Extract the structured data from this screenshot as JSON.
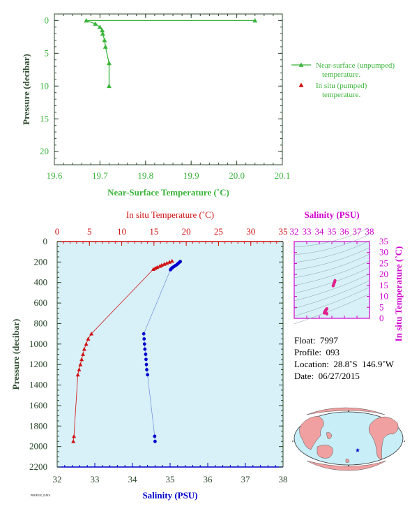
{
  "colors": {
    "green": "#3cb43c",
    "red": "#d01010",
    "blue": "#0000cc",
    "magenta": "#d000d0",
    "axis_dark": "#2e4a2e",
    "panel_bg": "#d8f0f8",
    "map_ocean": "#c8eef8",
    "map_land": "#f0a0a0"
  },
  "chart_data": [
    {
      "type": "line",
      "xlabel": "Near-Surface Temperature (˚C)",
      "ylabel": "Pressure (decibar)",
      "xlim": [
        19.6,
        20.1
      ],
      "ylim": [
        22,
        -1
      ],
      "xticks": [
        "19.6",
        "19.7",
        "19.8",
        "19.9",
        "20.0",
        "20.1"
      ],
      "yticks": [
        "0",
        "5",
        "10",
        "15",
        "20"
      ],
      "legend": [
        {
          "label_line1": "Near-surface (unpumped)",
          "label_line2": "temperature."
        },
        {
          "label_line1": "In situ (pumped)",
          "label_line2": "temperature."
        }
      ],
      "legend_position": "right",
      "series": [
        {
          "name": "Near-surface (unpumped) temperature.",
          "color": "#3cb43c",
          "points": [
            [
              20.04,
              0.0
            ],
            [
              19.67,
              0.0
            ],
            [
              19.69,
              0.5
            ],
            [
              19.7,
              1.0
            ],
            [
              19.705,
              1.5
            ],
            [
              19.706,
              2.0
            ],
            [
              19.71,
              3.0
            ],
            [
              19.712,
              4.0
            ],
            [
              19.72,
              6.5
            ],
            [
              19.72,
              10.0
            ]
          ]
        }
      ]
    },
    {
      "type": "line",
      "xlabel": "Salinity (PSU)",
      "x2label": "In situ Temperature (˚C)",
      "ylabel": "Pressure (decibar)",
      "salinity_lim": [
        32,
        38
      ],
      "temp_lim": [
        0,
        35
      ],
      "ylim": [
        2200,
        0
      ],
      "salinity_ticks": [
        "32",
        "33",
        "34",
        "35",
        "36",
        "37",
        "38"
      ],
      "temp_ticks": [
        "0",
        "5",
        "10",
        "15",
        "20",
        "25",
        "30",
        "35"
      ],
      "yticks": [
        "0",
        "200",
        "400",
        "600",
        "800",
        "1000",
        "1200",
        "1400",
        "1600",
        "1800",
        "2000",
        "2200"
      ],
      "series": [
        {
          "name": "In situ Temperature",
          "color": "#d01010",
          "points": [
            [
              17.8,
              190
            ],
            [
              17.4,
              200
            ],
            [
              17.0,
              210
            ],
            [
              16.6,
              220
            ],
            [
              16.2,
              230
            ],
            [
              15.9,
              240
            ],
            [
              15.5,
              250
            ],
            [
              15.2,
              260
            ],
            [
              14.9,
              270
            ],
            [
              5.3,
              900
            ],
            [
              4.8,
              950
            ],
            [
              4.5,
              1000
            ],
            [
              4.2,
              1050
            ],
            [
              4.0,
              1100
            ],
            [
              3.8,
              1150
            ],
            [
              3.6,
              1200
            ],
            [
              3.4,
              1250
            ],
            [
              3.2,
              1300
            ],
            [
              2.6,
              1900
            ],
            [
              2.5,
              1950
            ]
          ]
        },
        {
          "name": "Salinity",
          "color": "#0000cc",
          "points": [
            [
              35.27,
              195
            ],
            [
              35.24,
              205
            ],
            [
              35.21,
              215
            ],
            [
              35.18,
              225
            ],
            [
              35.14,
              235
            ],
            [
              35.1,
              245
            ],
            [
              35.06,
              255
            ],
            [
              35.03,
              265
            ],
            [
              35.01,
              275
            ],
            [
              34.3,
              900
            ],
            [
              34.31,
              950
            ],
            [
              34.32,
              1000
            ],
            [
              34.33,
              1050
            ],
            [
              34.35,
              1100
            ],
            [
              34.36,
              1150
            ],
            [
              34.37,
              1200
            ],
            [
              34.38,
              1250
            ],
            [
              34.4,
              1300
            ],
            [
              34.59,
              1900
            ],
            [
              34.6,
              1950
            ]
          ]
        }
      ]
    },
    {
      "type": "scatter",
      "xlabel": "Salinity (PSU)",
      "ylabel": "In situ Temperature (˚C)",
      "xlim": [
        32,
        38
      ],
      "ylim": [
        0,
        35
      ],
      "xticks": [
        "32",
        "33",
        "34",
        "35",
        "36",
        "37",
        "38"
      ],
      "yticks": [
        "0",
        "5",
        "10",
        "15",
        "20",
        "25",
        "30",
        "35"
      ],
      "series": [
        {
          "name": "T-S",
          "color": "#e0208c",
          "points": [
            [
              35.25,
              17.2
            ],
            [
              35.22,
              16.6
            ],
            [
              35.18,
              16.0
            ],
            [
              35.14,
              15.4
            ],
            [
              35.1,
              14.8
            ],
            [
              34.6,
              4.4
            ],
            [
              34.55,
              4.0
            ],
            [
              34.5,
              3.6
            ],
            [
              34.46,
              3.2
            ],
            [
              34.42,
              2.8
            ],
            [
              34.4,
              2.4
            ],
            [
              34.6,
              2.0
            ],
            [
              34.58,
              2.3
            ],
            [
              34.55,
              3.9
            ],
            [
              34.48,
              3.0
            ]
          ]
        }
      ]
    }
  ],
  "info": {
    "float": "Float:  7997",
    "profile": "Profile:  093",
    "location": "Location:  28.8˚S  146.9˚W",
    "date": "Date:  06/27/2015"
  },
  "map": {
    "float_marker": "star"
  },
  "footer": "PROFILE_DATA"
}
